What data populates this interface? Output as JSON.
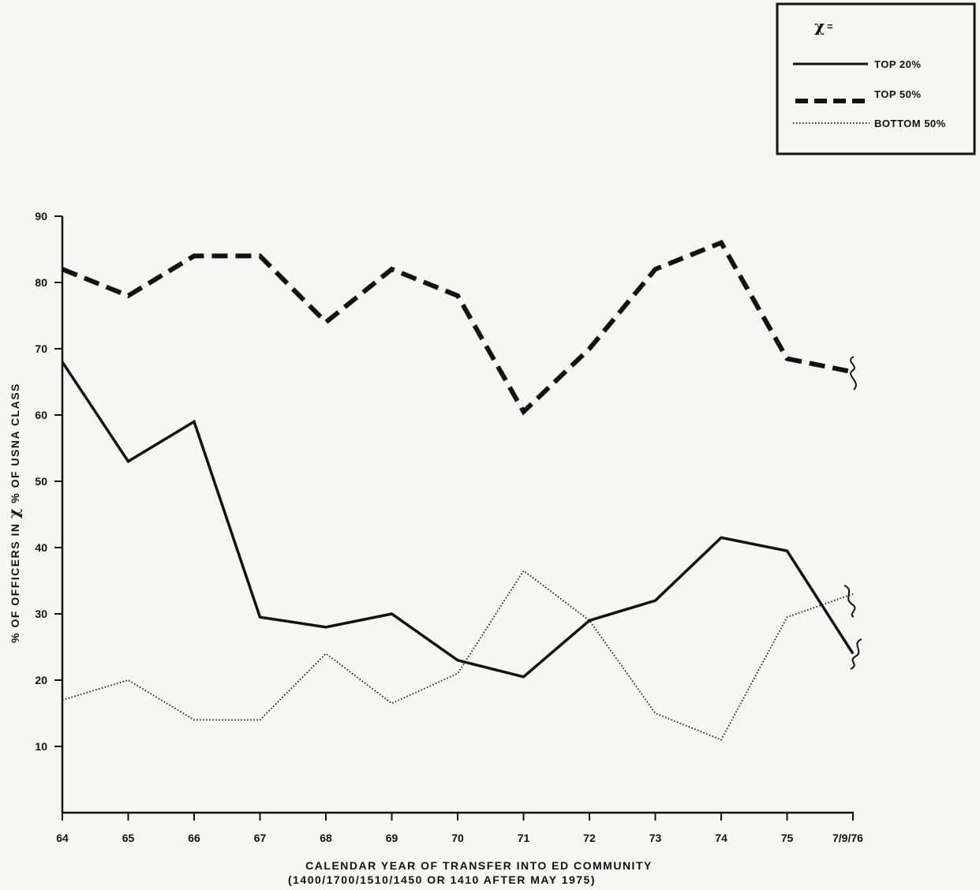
{
  "chart_data": {
    "type": "line",
    "xlabel": "CALENDAR YEAR OF TRANSFER INTO ED COMMUNITY",
    "xlabel_sub": "(1400/1700/1510/1450 OR 1410 AFTER MAY 1975)",
    "ylabel_parts": [
      "% OF OFFICERS IN ",
      "χ",
      " % OF USNA CLASS"
    ],
    "categories": [
      "64",
      "65",
      "66",
      "67",
      "68",
      "69",
      "70",
      "71",
      "72",
      "73",
      "74",
      "75",
      "7/9/76"
    ],
    "y_ticks": [
      "10",
      "20",
      "30",
      "40",
      "50",
      "60",
      "70",
      "80",
      "90"
    ],
    "ylim": [
      0,
      90
    ],
    "grid": false,
    "legend": {
      "placement": "top-right",
      "header_symbol": "χ",
      "header_suffix": "="
    },
    "series": [
      {
        "name": "TOP 20%",
        "style": "solid",
        "values": [
          68,
          53,
          59,
          29.5,
          28,
          30,
          23,
          20.5,
          29,
          32,
          41.5,
          39.5,
          24
        ]
      },
      {
        "name": "TOP 50%",
        "style": "dashed",
        "values": [
          82,
          78,
          84,
          84,
          74,
          82,
          78,
          60.5,
          70,
          82,
          86,
          68.5,
          66.5
        ]
      },
      {
        "name": "BOTTOM 50%",
        "style": "dotted",
        "values": [
          17,
          20,
          14,
          14,
          24,
          16.5,
          21,
          36.5,
          29,
          15,
          11,
          29.5,
          33
        ]
      }
    ],
    "colors": {
      "ink": "#111111",
      "paper": "#f6f6f3"
    }
  }
}
